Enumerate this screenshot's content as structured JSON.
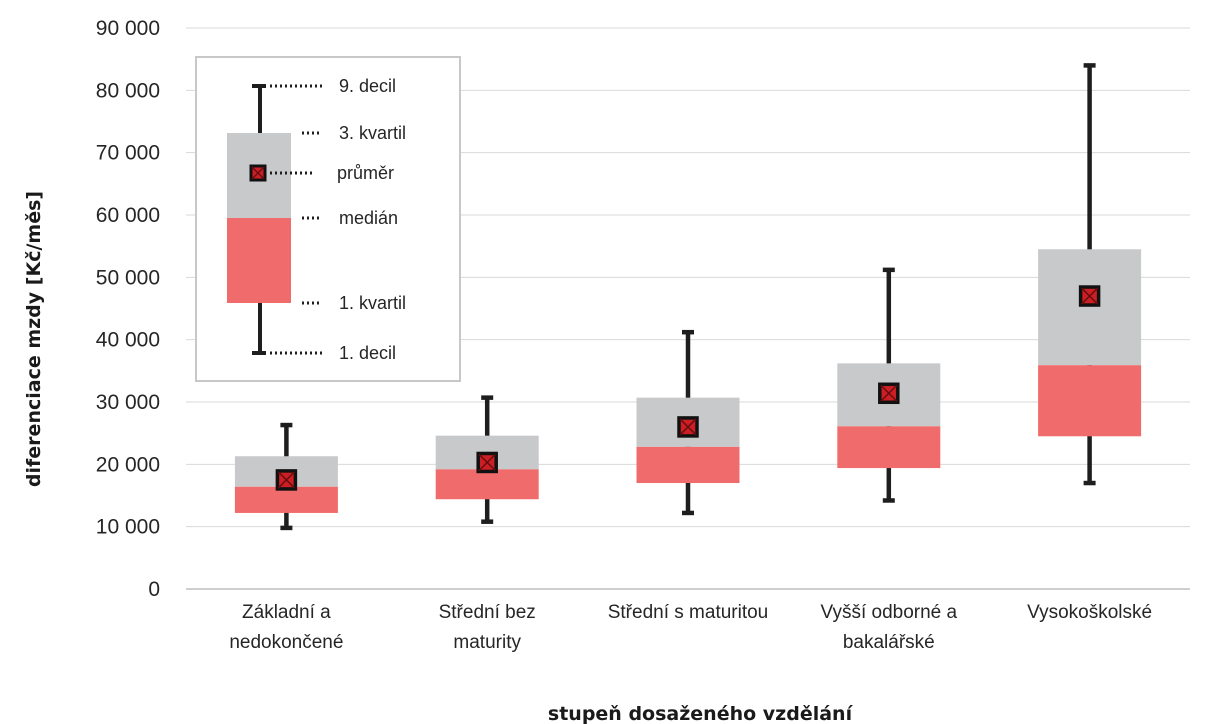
{
  "chart_data": {
    "type": "box",
    "xlabel": "stupeň dosaženého vzdělání",
    "ylabel": "diferenciace mzdy [Kč/měs]",
    "ylim": [
      0,
      90000
    ],
    "yticks": [
      0,
      10000,
      20000,
      30000,
      40000,
      50000,
      60000,
      70000,
      80000,
      90000
    ],
    "ytick_labels": [
      "0",
      "10 000",
      "20 000",
      "30 000",
      "40 000",
      "50 000",
      "60 000",
      "70 000",
      "80 000",
      "90 000"
    ],
    "grid": true,
    "categories": [
      {
        "label_lines": [
          "Základní a",
          "nedokončené"
        ],
        "d1": 9800,
        "q1": 12200,
        "median": 16400,
        "mean": 17500,
        "q3": 21300,
        "d9": 26300
      },
      {
        "label_lines": [
          "Střední bez",
          "maturity"
        ],
        "d1": 10800,
        "q1": 14400,
        "median": 19200,
        "mean": 20300,
        "q3": 24600,
        "d9": 30700
      },
      {
        "label_lines": [
          "Střední s maturitou"
        ],
        "d1": 12200,
        "q1": 17000,
        "median": 22800,
        "mean": 26000,
        "q3": 30700,
        "d9": 41200
      },
      {
        "label_lines": [
          "Vyšší odborné a",
          "bakalářské"
        ],
        "d1": 14200,
        "q1": 19400,
        "median": 26100,
        "mean": 31400,
        "q3": 36200,
        "d9": 51200
      },
      {
        "label_lines": [
          "Vysokoškolské"
        ],
        "d1": 17000,
        "q1": 24500,
        "median": 35900,
        "mean": 47000,
        "q3": 54500,
        "d9": 84000
      }
    ],
    "colors": {
      "lower_box": "#f06b6b",
      "upper_box": "#c8c9cb",
      "whisker": "#1e1e1e",
      "mean_marker": "#cc1f24",
      "grid": "#d9d9d9"
    },
    "legend": {
      "placement": "top-left",
      "items": {
        "d9": "9. decil",
        "q3": "3. kvartil",
        "mean": "průměr",
        "median": "medián",
        "q1": "1. kvartil",
        "d1": "1. decil"
      }
    }
  }
}
